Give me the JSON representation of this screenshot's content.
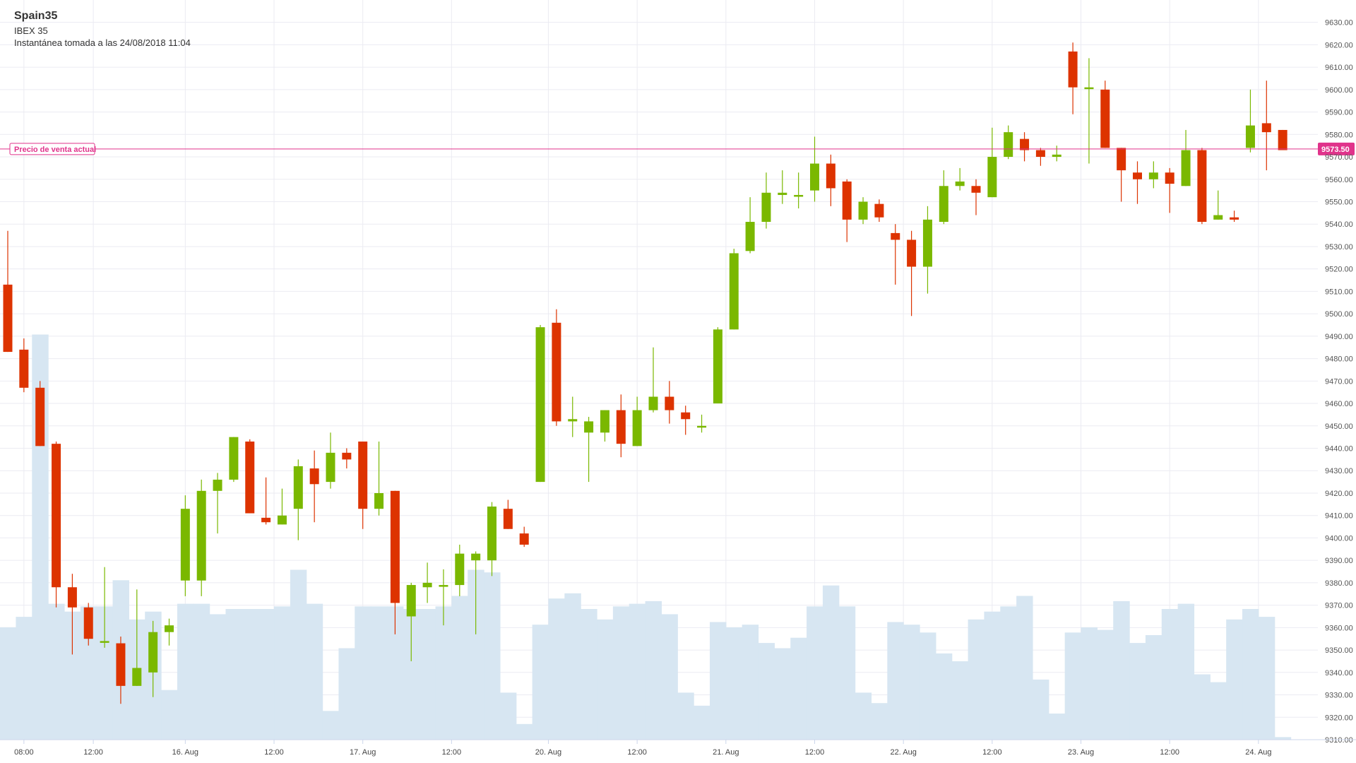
{
  "header": {
    "symbol": "Spain35",
    "name": "IBEX 35",
    "snapshot": "Instantánea tomada a las 24/08/2018 11:04"
  },
  "current_price": {
    "label": "Precio de venta actual",
    "value": 9573.5,
    "value_text": "9573.50",
    "color": "#e0338b"
  },
  "colors": {
    "up": "#7ab800",
    "down": "#dd3300",
    "volume": "#d7e6f2",
    "grid": "#ebebf2"
  },
  "chart_data": {
    "type": "candlestick",
    "ylim": [
      9310,
      9635
    ],
    "y_ticks": [
      "9310.00",
      "9320.00",
      "9330.00",
      "9340.00",
      "9350.00",
      "9360.00",
      "9370.00",
      "9380.00",
      "9390.00",
      "9400.00",
      "9410.00",
      "9420.00",
      "9430.00",
      "9440.00",
      "9450.00",
      "9460.00",
      "9470.00",
      "9480.00",
      "9490.00",
      "9500.00",
      "9510.00",
      "9520.00",
      "9530.00",
      "9540.00",
      "9550.00",
      "9560.00",
      "9570.00",
      "9580.00",
      "9590.00",
      "9600.00",
      "9610.00",
      "9620.00",
      "9630.00"
    ],
    "x_ticks": [
      {
        "label": "08:00",
        "i": 1
      },
      {
        "label": "12:00",
        "i": 5.3
      },
      {
        "label": "16. Aug",
        "i": 11
      },
      {
        "label": "12:00",
        "i": 16.5
      },
      {
        "label": "17. Aug",
        "i": 22
      },
      {
        "label": "12:00",
        "i": 27.5
      },
      {
        "label": "20. Aug",
        "i": 33.5
      },
      {
        "label": "12:00",
        "i": 39
      },
      {
        "label": "21. Aug",
        "i": 44.5
      },
      {
        "label": "12:00",
        "i": 50
      },
      {
        "label": "22. Aug",
        "i": 55.5
      },
      {
        "label": "12:00",
        "i": 61
      },
      {
        "label": "23. Aug",
        "i": 66.5
      },
      {
        "label": "12:00",
        "i": 72
      },
      {
        "label": "24. Aug",
        "i": 77.5
      }
    ],
    "candles": [
      [
        9513,
        9537,
        9483,
        9483
      ],
      [
        9484,
        9489,
        9465,
        9467
      ],
      [
        9467,
        9470,
        9441,
        9441
      ],
      [
        9442,
        9443,
        9369,
        9378
      ],
      [
        9378,
        9384,
        9348,
        9369
      ],
      [
        9369,
        9371,
        9352,
        9355
      ],
      [
        9354,
        9387,
        9351,
        9354
      ],
      [
        9353,
        9356,
        9326,
        9334
      ],
      [
        9334,
        9377,
        9334,
        9342
      ],
      [
        9340,
        9363,
        9329,
        9358
      ],
      [
        9358,
        9364,
        9352,
        9361
      ],
      [
        9381,
        9419,
        9374,
        9413
      ],
      [
        9381,
        9426,
        9374,
        9421
      ],
      [
        9421,
        9429,
        9402,
        9426
      ],
      [
        9426,
        9445,
        9425,
        9445
      ],
      [
        9443,
        9444,
        9411,
        9411
      ],
      [
        9409,
        9427,
        9406,
        9407
      ],
      [
        9406,
        9422,
        9406,
        9410
      ],
      [
        9413,
        9435,
        9399,
        9432
      ],
      [
        9431,
        9439,
        9407,
        9424
      ],
      [
        9425,
        9447,
        9422,
        9438
      ],
      [
        9438,
        9440,
        9431,
        9435
      ],
      [
        9443,
        9443,
        9404,
        9413
      ],
      [
        9413,
        9443,
        9410,
        9420
      ],
      [
        9421,
        9421,
        9357,
        9371
      ],
      [
        9365,
        9380,
        9345,
        9379
      ],
      [
        9378,
        9389,
        9371,
        9380
      ],
      [
        9379,
        9386,
        9361,
        9379
      ],
      [
        9379,
        9397,
        9374,
        9393
      ],
      [
        9390,
        9394,
        9357,
        9393
      ],
      [
        9390,
        9416,
        9383,
        9414
      ],
      [
        9413,
        9417,
        9404,
        9404
      ],
      [
        9402,
        9405,
        9396,
        9397
      ],
      [
        9425,
        9495,
        9425,
        9494
      ],
      [
        9496,
        9502,
        9450,
        9452
      ],
      [
        9452,
        9463,
        9445,
        9453
      ],
      [
        9447,
        9454,
        9425,
        9452
      ],
      [
        9447,
        9457,
        9443,
        9457
      ],
      [
        9457,
        9464,
        9436,
        9442
      ],
      [
        9441,
        9463,
        9441,
        9457
      ],
      [
        9457,
        9485,
        9456,
        9463
      ],
      [
        9463,
        9470,
        9451,
        9457
      ],
      [
        9456,
        9459,
        9446,
        9453
      ],
      [
        9450,
        9455,
        9447,
        9450
      ],
      [
        9460,
        9494,
        9460,
        9493
      ],
      [
        9493,
        9529,
        9493,
        9527
      ],
      [
        9528,
        9552,
        9527,
        9541
      ],
      [
        9541,
        9563,
        9538,
        9554
      ],
      [
        9553,
        9564,
        9549,
        9554
      ],
      [
        9553,
        9563,
        9547,
        9553
      ],
      [
        9555,
        9579,
        9550,
        9567
      ],
      [
        9567,
        9571,
        9548,
        9556
      ],
      [
        9559,
        9560,
        9532,
        9542
      ],
      [
        9542,
        9552,
        9540,
        9550
      ],
      [
        9549,
        9551,
        9541,
        9543
      ],
      [
        9536,
        9540,
        9513,
        9533
      ],
      [
        9533,
        9537,
        9499,
        9521
      ],
      [
        9521,
        9548,
        9509,
        9542
      ],
      [
        9541,
        9564,
        9540,
        9557
      ],
      [
        9557,
        9565,
        9555,
        9559
      ],
      [
        9557,
        9560,
        9544,
        9554
      ],
      [
        9552,
        9583,
        9552,
        9570
      ],
      [
        9570,
        9584,
        9569,
        9581
      ],
      [
        9578,
        9581,
        9568,
        9573
      ],
      [
        9573,
        9574,
        9566,
        9570
      ],
      [
        9570,
        9575,
        9568,
        9571
      ],
      [
        9617,
        9621,
        9589,
        9601
      ],
      [
        9601,
        9614,
        9567,
        9601
      ],
      [
        9600,
        9604,
        9574,
        9574
      ],
      [
        9574,
        9574,
        9550,
        9564
      ],
      [
        9563,
        9568,
        9549,
        9560
      ],
      [
        9560,
        9568,
        9556,
        9563
      ],
      [
        9563,
        9565,
        9545,
        9558
      ],
      [
        9557,
        9582,
        9557,
        9573
      ],
      [
        9573,
        9574,
        9540,
        9541
      ],
      [
        9542,
        9555,
        9542,
        9544
      ],
      [
        9543,
        9546,
        9541,
        9542
      ],
      [
        9574,
        9600,
        9572,
        9584
      ],
      [
        9585,
        9604,
        9564,
        9581
      ],
      [
        9582,
        9582,
        9573,
        9573
      ]
    ],
    "volume": [
      43,
      47,
      155,
      52,
      49,
      51,
      51,
      61,
      46,
      49,
      19,
      52,
      52,
      48,
      50,
      50,
      50,
      51,
      65,
      52,
      11,
      35,
      51,
      51,
      51,
      50,
      50,
      51,
      55,
      65,
      64,
      18,
      6,
      44,
      54,
      56,
      50,
      46,
      51,
      52,
      53,
      48,
      18,
      13,
      45,
      43,
      44,
      37,
      35,
      39,
      51,
      59,
      51,
      18,
      14,
      45,
      44,
      41,
      33,
      30,
      46,
      49,
      51,
      55,
      23,
      10,
      41,
      43,
      42,
      53,
      37,
      40,
      50,
      52,
      25,
      22,
      46,
      50,
      47,
      1
    ]
  }
}
